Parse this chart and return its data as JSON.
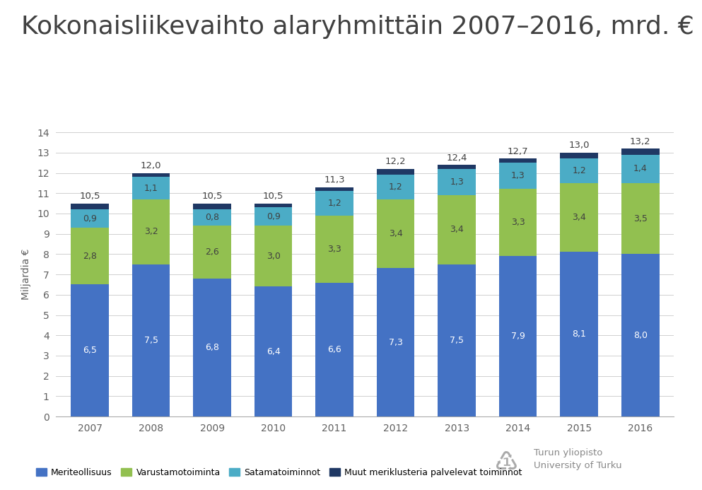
{
  "title": "Kokonaisliikevaihto alaryhmittäin 2007–2016, mrd. €",
  "years": [
    "2007",
    "2008",
    "2009",
    "2010",
    "2011",
    "2012",
    "2013",
    "2014",
    "2015",
    "2016"
  ],
  "meriteollisuus": [
    6.5,
    7.5,
    6.8,
    6.4,
    6.6,
    7.3,
    7.5,
    7.9,
    8.1,
    8.0
  ],
  "varustamo": [
    2.8,
    3.2,
    2.6,
    3.0,
    3.3,
    3.4,
    3.4,
    3.3,
    3.4,
    3.5
  ],
  "satama": [
    0.9,
    1.1,
    0.8,
    0.9,
    1.2,
    1.2,
    1.3,
    1.3,
    1.2,
    1.4
  ],
  "muut": [
    0.3,
    0.2,
    0.3,
    0.2,
    0.2,
    0.3,
    0.2,
    0.2,
    0.3,
    0.3
  ],
  "totals": [
    10.5,
    12.0,
    10.5,
    10.5,
    11.3,
    12.2,
    12.4,
    12.7,
    13.0,
    13.2
  ],
  "color_meriteollisuus": "#4472c4",
  "color_varustamo": "#92c050",
  "color_satama": "#4bacc6",
  "color_muut": "#1f3864",
  "ylabel": "Miljardia €",
  "ylim": [
    0,
    14
  ],
  "yticks": [
    0,
    1,
    2,
    3,
    4,
    5,
    6,
    7,
    8,
    9,
    10,
    11,
    12,
    13,
    14
  ],
  "legend_labels": [
    "Meriteollisuus",
    "Varustamotoiminta",
    "Satamatoiminnot",
    "Muut meriklusteria palvelevat toiminnot"
  ],
  "background_color": "#ffffff",
  "title_color": "#404040",
  "label_color": "#404040",
  "axis_color": "#606060",
  "title_fontsize": 26,
  "bar_value_fontsize": 9,
  "total_fontsize": 9.5
}
